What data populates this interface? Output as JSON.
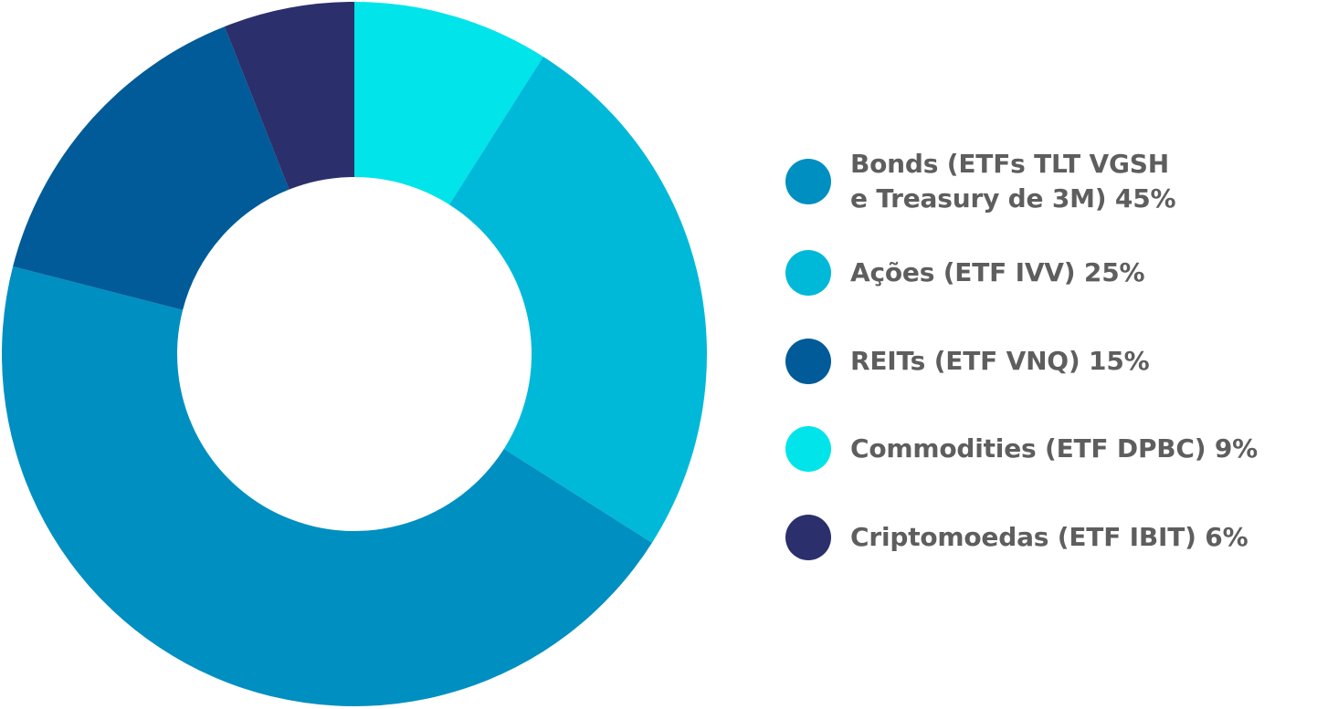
{
  "chart_data": {
    "type": "pie",
    "title": "",
    "donut": true,
    "legend_position": "right",
    "slices": [
      {
        "label": "Bonds (ETFs TLT VGSH\ne Treasury de 3M) 45%",
        "value": 45,
        "color": "#008fc1"
      },
      {
        "label": "Ações (ETF IVV) 25%",
        "value": 25,
        "color": "#00b9d9"
      },
      {
        "label": "REITs (ETF VNQ) 15%",
        "value": 15,
        "color": "#005b98"
      },
      {
        "label": "Commodities (ETF DPBC) 9%",
        "value": 9,
        "color": "#00e4ea"
      },
      {
        "label": "Criptomoedas (ETF IBIT) 6%",
        "value": 6,
        "color": "#2b2f6c"
      }
    ]
  }
}
